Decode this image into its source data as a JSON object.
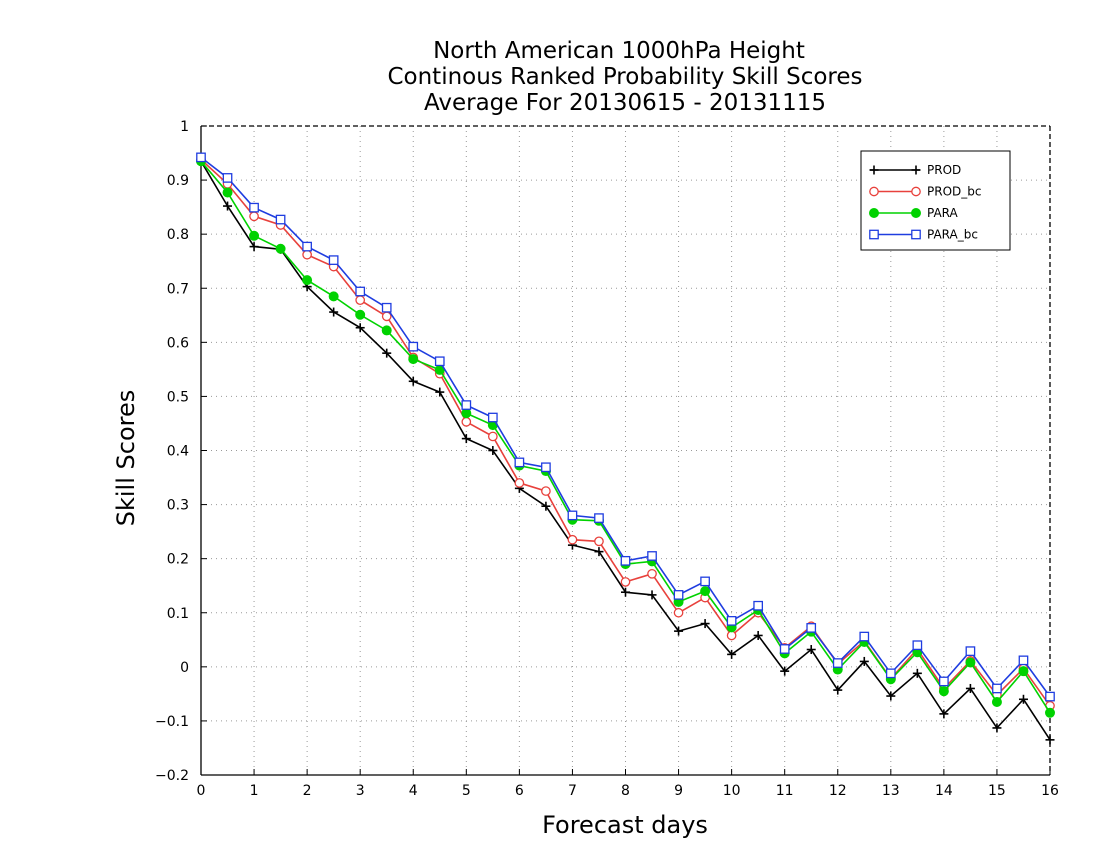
{
  "chart_data": {
    "type": "line",
    "title": [
      "North American 1000hPa Height",
      "Continous Ranked Probability Skill Scores",
      "Average For 20130615 - 20131115"
    ],
    "xlabel": "Forecast days",
    "ylabel": "Skill Scores",
    "xlim": [
      0,
      16
    ],
    "ylim": [
      -0.2,
      1
    ],
    "xticks": [
      0,
      1,
      2,
      3,
      4,
      5,
      6,
      7,
      8,
      9,
      10,
      11,
      12,
      13,
      14,
      15,
      16
    ],
    "yticks": [
      -0.2,
      -0.1,
      0,
      0.1,
      0.2,
      0.3,
      0.4,
      0.5,
      0.6,
      0.7,
      0.8,
      0.9,
      1
    ],
    "ytick_labels": [
      "−0.2",
      "−0.1",
      "0",
      "0.1",
      "0.2",
      "0.3",
      "0.4",
      "0.5",
      "0.6",
      "0.7",
      "0.8",
      "0.9",
      "1"
    ],
    "grid": true,
    "legend_position": "top-right",
    "x": [
      0,
      0.5,
      1,
      1.5,
      2,
      2.5,
      3,
      3.5,
      4,
      4.5,
      5,
      5.5,
      6,
      6.5,
      7,
      7.5,
      8,
      8.5,
      9,
      9.5,
      10,
      10.5,
      11,
      11.5,
      12,
      12.5,
      13,
      13.5,
      14,
      14.5,
      15,
      15.5,
      16
    ],
    "series": [
      {
        "name": "PROD",
        "color": "#000000",
        "marker": "plus",
        "values": [
          0.935,
          0.852,
          0.777,
          0.772,
          0.703,
          0.656,
          0.627,
          0.58,
          0.528,
          0.508,
          0.422,
          0.4,
          0.33,
          0.297,
          0.225,
          0.213,
          0.138,
          0.133,
          0.066,
          0.08,
          0.023,
          0.058,
          -0.008,
          0.032,
          -0.043,
          0.01,
          -0.054,
          -0.012,
          -0.087,
          -0.04,
          -0.113,
          -0.06,
          -0.135
        ]
      },
      {
        "name": "PROD_bc",
        "color": "#e8413c",
        "marker": "circle-open",
        "values": [
          0.938,
          0.893,
          0.833,
          0.817,
          0.762,
          0.74,
          0.678,
          0.648,
          0.572,
          0.542,
          0.453,
          0.426,
          0.34,
          0.325,
          0.235,
          0.232,
          0.157,
          0.172,
          0.1,
          0.128,
          0.058,
          0.1,
          0.035,
          0.075,
          0.005,
          0.048,
          -0.022,
          0.033,
          -0.04,
          0.011,
          -0.052,
          -0.003,
          -0.072
        ]
      },
      {
        "name": "PARA",
        "color": "#00d200",
        "marker": "circle-filled",
        "values": [
          0.935,
          0.877,
          0.797,
          0.773,
          0.715,
          0.685,
          0.651,
          0.622,
          0.569,
          0.549,
          0.469,
          0.447,
          0.372,
          0.362,
          0.272,
          0.27,
          0.19,
          0.195,
          0.12,
          0.14,
          0.073,
          0.105,
          0.025,
          0.065,
          -0.005,
          0.046,
          -0.023,
          0.027,
          -0.045,
          0.008,
          -0.065,
          -0.008,
          -0.085
        ]
      },
      {
        "name": "PARA_bc",
        "color": "#1f3de0",
        "marker": "square-open",
        "values": [
          0.942,
          0.904,
          0.849,
          0.827,
          0.777,
          0.752,
          0.694,
          0.664,
          0.592,
          0.565,
          0.484,
          0.461,
          0.378,
          0.369,
          0.28,
          0.275,
          0.196,
          0.205,
          0.133,
          0.158,
          0.085,
          0.113,
          0.033,
          0.072,
          0.007,
          0.056,
          -0.012,
          0.04,
          -0.027,
          0.029,
          -0.04,
          0.012,
          -0.055
        ]
      }
    ]
  }
}
